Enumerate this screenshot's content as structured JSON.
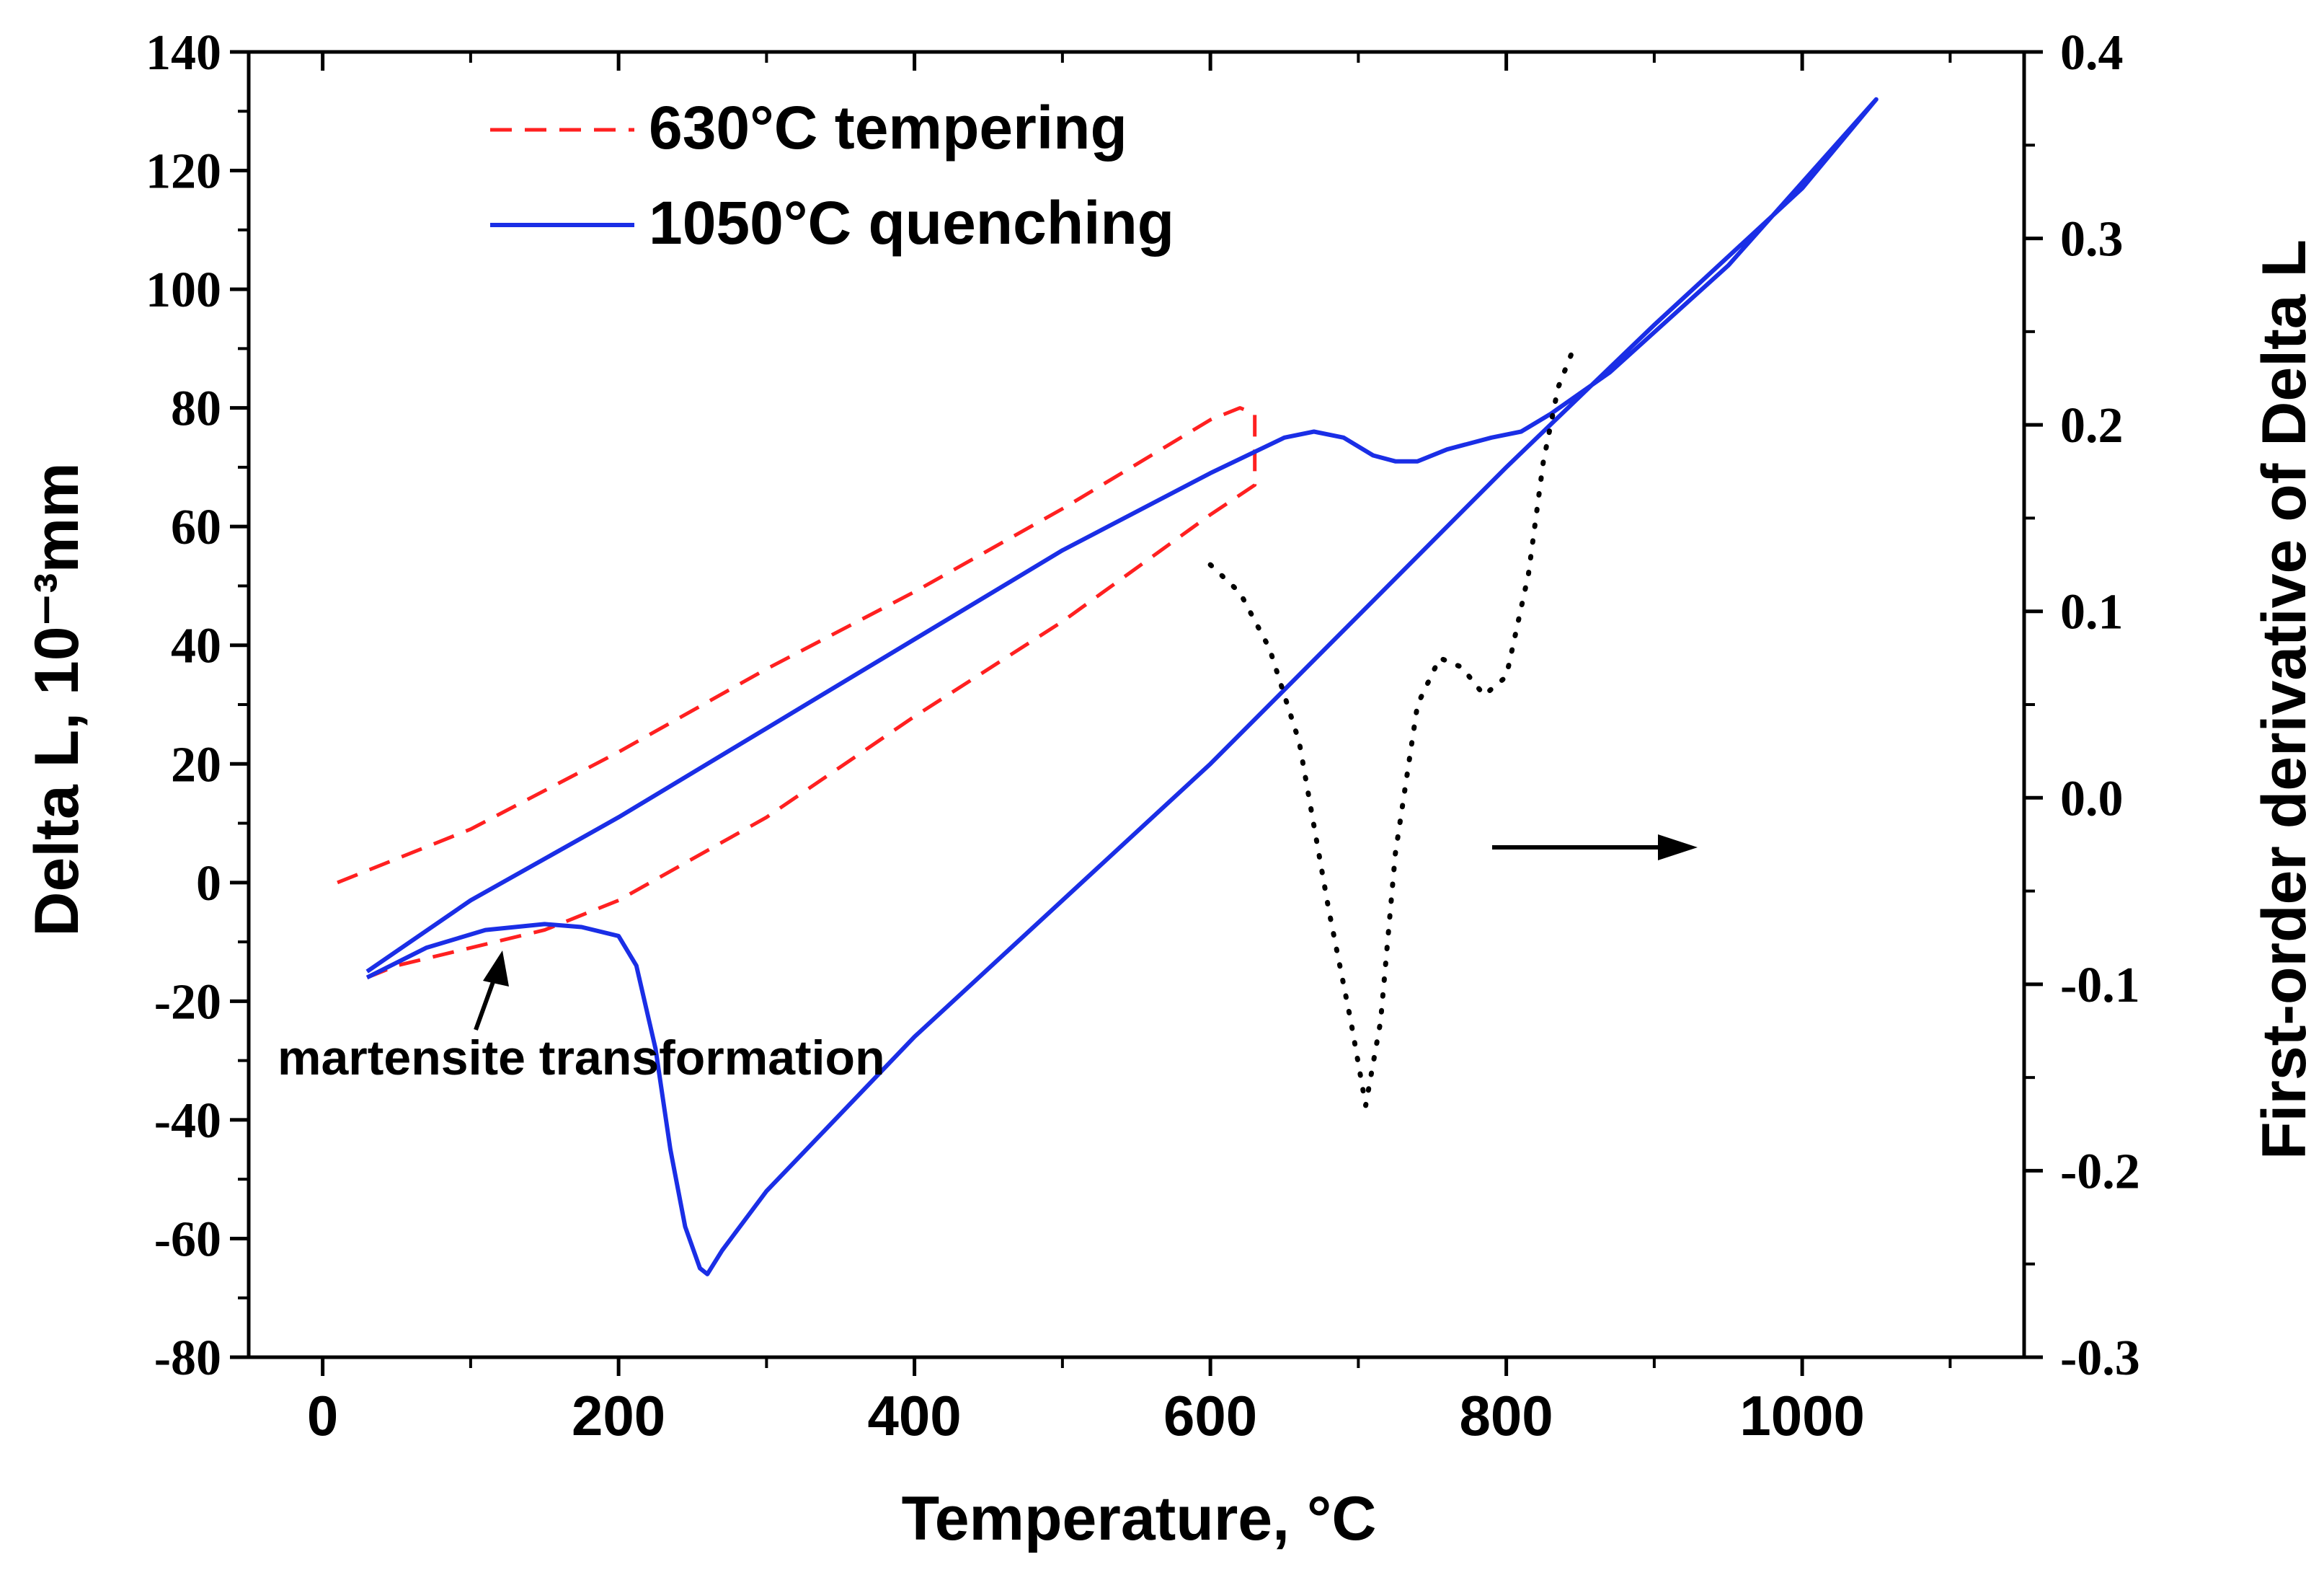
{
  "chart_data": {
    "type": "line",
    "title": "",
    "xlabel": "Temperature, °C",
    "ylabel": "Delta L, 10⁻³mm",
    "y2label": "First-order derivative of Delta L",
    "xlim": [
      -50,
      1150
    ],
    "ylim": [
      -80,
      140
    ],
    "y2lim": [
      -0.3,
      0.4
    ],
    "x_ticks": [
      0,
      200,
      400,
      600,
      800,
      1000
    ],
    "y_ticks": [
      -80,
      -60,
      -40,
      -20,
      0,
      20,
      40,
      60,
      80,
      100,
      120,
      140
    ],
    "y2_ticks": [
      -0.3,
      -0.2,
      -0.1,
      0.0,
      0.1,
      0.2,
      0.3,
      0.4
    ],
    "x_tick_labels": [
      "0",
      "200",
      "400",
      "600",
      "800",
      "1000"
    ],
    "y_tick_labels": [
      "-80",
      "-60",
      "-40",
      "-20",
      "0",
      "20",
      "40",
      "60",
      "80",
      "100",
      "120",
      "140"
    ],
    "y2_tick_labels": [
      "-0.3",
      "-0.2",
      "-0.1",
      "0.0",
      "0.1",
      "0.2",
      "0.3",
      "0.4"
    ],
    "grid": false,
    "legend_position": "top-left",
    "series": [
      {
        "name": "630°C   tempering",
        "color": "#ff2020",
        "style": "dashed",
        "axis": "left",
        "points": [
          [
            10,
            0
          ],
          [
            100,
            9
          ],
          [
            200,
            22
          ],
          [
            300,
            36
          ],
          [
            400,
            49
          ],
          [
            500,
            63
          ],
          [
            560,
            72
          ],
          [
            600,
            78
          ],
          [
            620,
            80
          ],
          [
            630,
            79
          ],
          [
            630,
            67
          ],
          [
            600,
            62
          ],
          [
            500,
            44
          ],
          [
            400,
            28
          ],
          [
            300,
            11
          ],
          [
            200,
            -3
          ],
          [
            150,
            -8
          ],
          [
            100,
            -11
          ],
          [
            50,
            -14
          ],
          [
            30,
            -16
          ]
        ]
      },
      {
        "name": "1050°C quenching",
        "color": "#1a2ee6",
        "style": "solid",
        "axis": "left",
        "points": [
          [
            30,
            -15
          ],
          [
            100,
            -3
          ],
          [
            200,
            11
          ],
          [
            300,
            26
          ],
          [
            400,
            41
          ],
          [
            500,
            56
          ],
          [
            600,
            69
          ],
          [
            650,
            75
          ],
          [
            670,
            76
          ],
          [
            690,
            75
          ],
          [
            710,
            72
          ],
          [
            725,
            71
          ],
          [
            740,
            71
          ],
          [
            760,
            73
          ],
          [
            790,
            75
          ],
          [
            810,
            76
          ],
          [
            830,
            79
          ],
          [
            870,
            86
          ],
          [
            950,
            104
          ],
          [
            1000,
            118
          ],
          [
            1050,
            132
          ],
          [
            1000,
            117
          ],
          [
            900,
            94
          ],
          [
            800,
            70
          ],
          [
            700,
            45
          ],
          [
            600,
            20
          ],
          [
            500,
            -3
          ],
          [
            400,
            -26
          ],
          [
            300,
            -52
          ],
          [
            270,
            -62
          ],
          [
            260,
            -66
          ],
          [
            255,
            -65
          ],
          [
            245,
            -58
          ],
          [
            235,
            -45
          ],
          [
            225,
            -28
          ],
          [
            212,
            -14
          ],
          [
            200,
            -9
          ],
          [
            175,
            -7.5
          ],
          [
            150,
            -7
          ],
          [
            110,
            -8
          ],
          [
            70,
            -11
          ],
          [
            30,
            -16
          ]
        ]
      },
      {
        "name": "",
        "color": "#000000",
        "style": "dotted",
        "axis": "right",
        "points": [
          [
            600,
            0.125
          ],
          [
            620,
            0.11
          ],
          [
            640,
            0.08
          ],
          [
            660,
            0.03
          ],
          [
            680,
            -0.06
          ],
          [
            695,
            -0.12
          ],
          [
            705,
            -0.165
          ],
          [
            715,
            -0.12
          ],
          [
            725,
            -0.03
          ],
          [
            740,
            0.05
          ],
          [
            755,
            0.075
          ],
          [
            770,
            0.07
          ],
          [
            785,
            0.055
          ],
          [
            800,
            0.065
          ],
          [
            815,
            0.12
          ],
          [
            825,
            0.18
          ],
          [
            835,
            0.22
          ],
          [
            845,
            0.24
          ]
        ]
      }
    ],
    "annotations": {
      "martensite_text": "martensite transformation",
      "arrow_right": ""
    }
  }
}
